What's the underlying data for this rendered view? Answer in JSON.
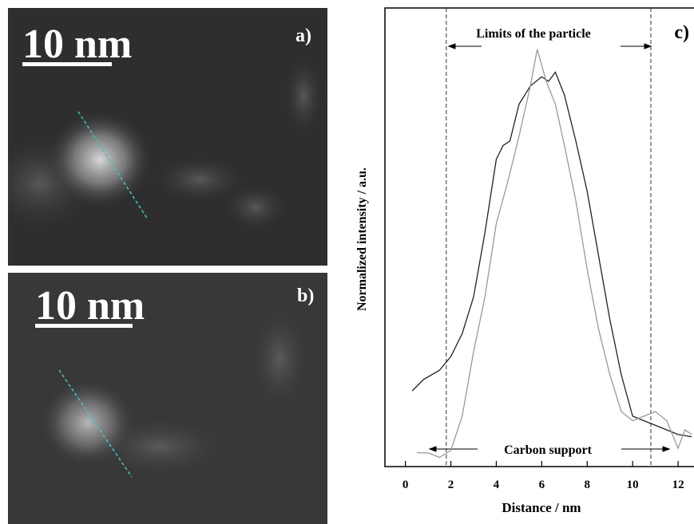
{
  "panels": [
    {
      "scale_bar": "10 nm",
      "label": "a)"
    },
    {
      "scale_bar": "10 nm",
      "label": "b)"
    }
  ],
  "chart_data": {
    "type": "line",
    "panel_label": "c)",
    "xlabel": "Distance / nm",
    "ylabel": "Normalized intensity / a.u.",
    "annotations": [
      "Limits of the particle",
      "Carbon support"
    ],
    "xlim": [
      -0.9,
      12.7
    ],
    "ylim": [
      0,
      1
    ],
    "xticks": [
      0,
      2,
      4,
      6,
      8,
      10,
      12
    ],
    "vlines": [
      1.8,
      10.8
    ],
    "series": [
      {
        "color": "#222222",
        "x": [
          0.3,
          0.8,
          1.5,
          2,
          2.5,
          3,
          3.5,
          4,
          4.3,
          4.6,
          5,
          5.5,
          6,
          6.3,
          6.6,
          7,
          7.5,
          8,
          8.5,
          9,
          9.5,
          10,
          10.5,
          11,
          11.5,
          12,
          12.6
        ],
        "values": [
          0.165,
          0.19,
          0.21,
          0.24,
          0.29,
          0.37,
          0.51,
          0.67,
          0.7,
          0.71,
          0.79,
          0.83,
          0.85,
          0.84,
          0.86,
          0.81,
          0.71,
          0.6,
          0.46,
          0.32,
          0.2,
          0.11,
          0.1,
          0.09,
          0.08,
          0.07,
          0.065
        ]
      },
      {
        "color": "#999999",
        "x": [
          0.5,
          1,
          1.5,
          2,
          2.5,
          3,
          3.5,
          4,
          4.5,
          5,
          5.5,
          5.8,
          6.2,
          6.6,
          7,
          7.5,
          8,
          8.5,
          9,
          9.5,
          10,
          10.5,
          11,
          11.5,
          12,
          12.3,
          12.6
        ],
        "values": [
          0.03,
          0.03,
          0.02,
          0.035,
          0.11,
          0.25,
          0.37,
          0.53,
          0.62,
          0.72,
          0.83,
          0.91,
          0.84,
          0.79,
          0.7,
          0.58,
          0.43,
          0.3,
          0.2,
          0.12,
          0.1,
          0.11,
          0.12,
          0.1,
          0.04,
          0.08,
          0.07
        ]
      }
    ]
  }
}
